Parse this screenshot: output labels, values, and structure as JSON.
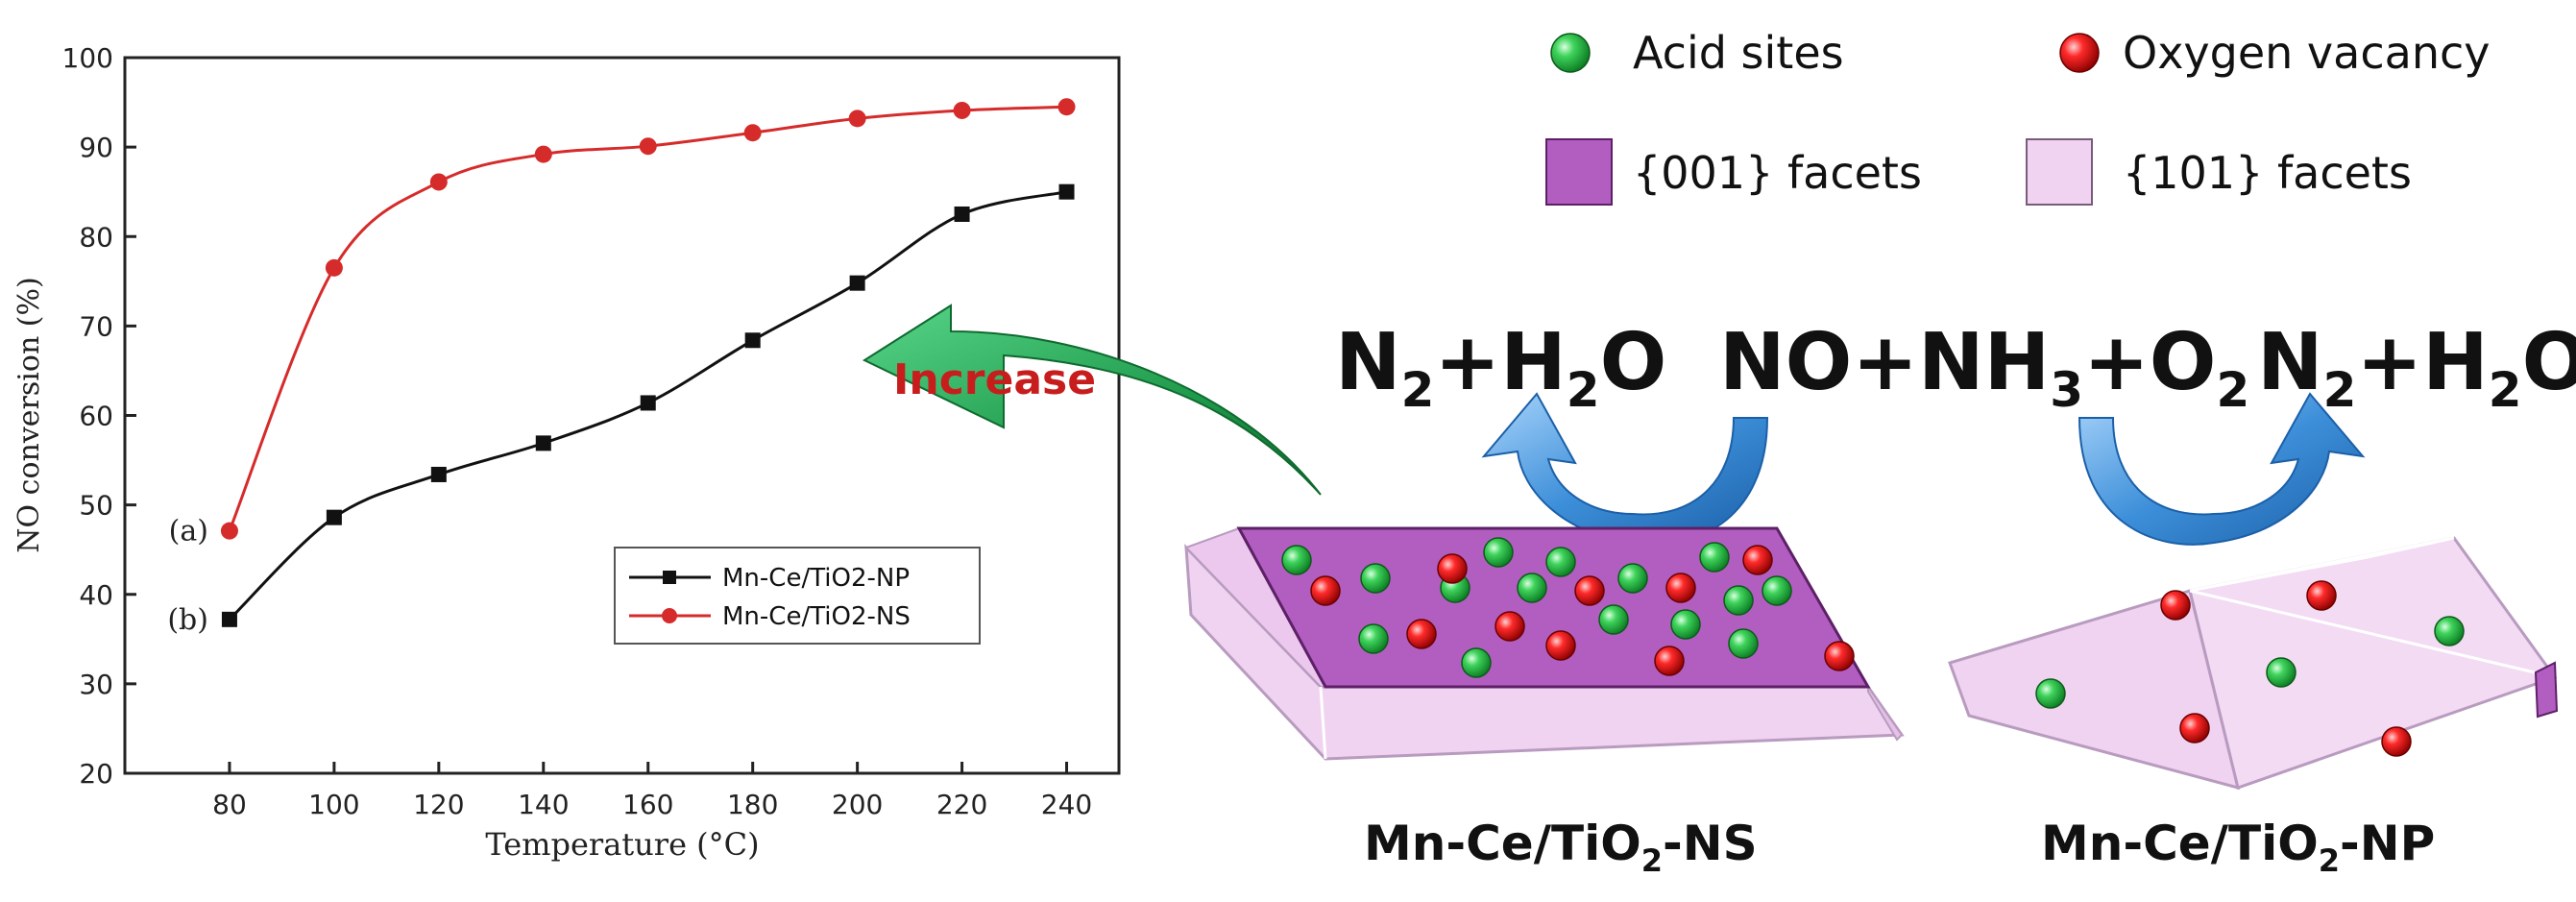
{
  "chart_data": {
    "type": "line",
    "title": "",
    "xlabel": "Temperature (°C)",
    "ylabel": "NO conversion (%)",
    "xlim": [
      60,
      250
    ],
    "ylim": [
      20,
      100
    ],
    "x_ticks": [
      80,
      100,
      120,
      140,
      160,
      180,
      200,
      220,
      240
    ],
    "y_ticks": [
      20,
      30,
      40,
      50,
      60,
      70,
      80,
      90,
      100
    ],
    "grid": false,
    "legend_position": "center-right",
    "series": [
      {
        "name": "Mn-Ce/TiO2-NP",
        "label": "(b)",
        "color": "#111111",
        "marker": "square",
        "x": [
          80,
          100,
          120,
          140,
          160,
          180,
          200,
          220,
          240
        ],
        "y": [
          37.2,
          48.6,
          53.4,
          56.9,
          61.4,
          68.4,
          74.8,
          82.5,
          85
        ]
      },
      {
        "name": "Mn-Ce/TiO2-NS",
        "label": "(a)",
        "color": "#d62b2b",
        "marker": "circle",
        "x": [
          80,
          100,
          120,
          140,
          160,
          180,
          200,
          220,
          240
        ],
        "y": [
          47.1,
          76.5,
          86.1,
          89.2,
          90.1,
          91.6,
          93.2,
          94.1,
          94.5
        ]
      }
    ]
  },
  "diagram": {
    "increase_label": "Increase",
    "legend": {
      "acid_sites": "Acid sites",
      "oxygen_vacancy": "Oxygen vacancy",
      "facets_001": "{001} facets",
      "facets_101": "{101} facets"
    },
    "product_left": {
      "n": "N",
      "n_sub": "2",
      "rest": "+H",
      "h_sub": "2",
      "o": "O"
    },
    "reactants": {
      "a": "NO+NH",
      "sub1": "3",
      "b": "+O",
      "sub2": "2"
    },
    "product_right": {
      "n": "N",
      "n_sub": "2",
      "rest": "+H",
      "h_sub": "2",
      "o": "O"
    },
    "caption_ns": {
      "prefix": "Mn-Ce/TiO",
      "sub": "2",
      "suffix": "-NS"
    },
    "caption_np": {
      "prefix": "Mn-Ce/TiO",
      "sub": "2",
      "suffix": "-NP"
    },
    "colors": {
      "acid_site": "#1fbf3a",
      "oxygen_vacancy": "#e01515",
      "facet_001": "#b15ec0",
      "facet_101": "#f0d3f1",
      "increase_arrow": "#1f9a4b",
      "increase_text": "#c81d1d",
      "blue_arrow": "#3c8fd8"
    }
  }
}
